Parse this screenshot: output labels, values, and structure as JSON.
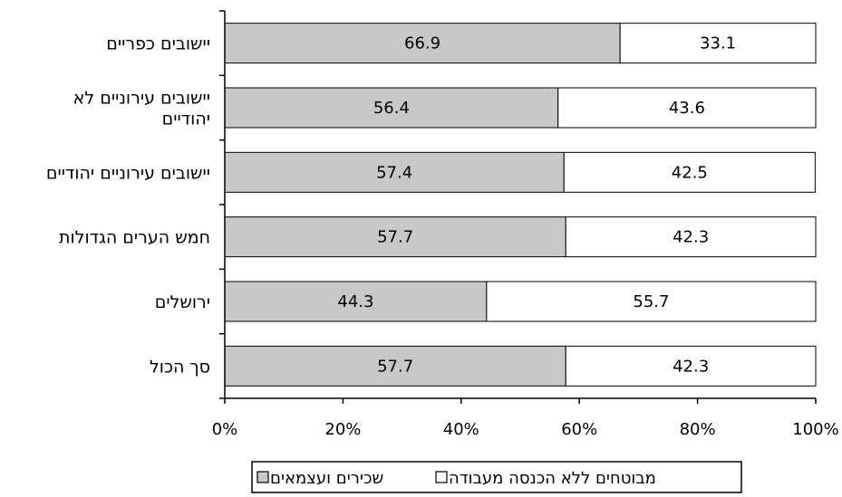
{
  "chart_data": {
    "type": "bar",
    "orientation": "horizontal",
    "stacked": true,
    "percent_stacked": true,
    "categories": [
      [
        "יישובים כפריים"
      ],
      [
        "יישובים עירוניים לא",
        "יהודיים"
      ],
      [
        "יישובים עירוניים יהודיים"
      ],
      [
        "חמש הערים הגדולות"
      ],
      [
        "ירושלים"
      ],
      [
        "סך הכול"
      ]
    ],
    "series": [
      {
        "name": "שכירים ועצמאים",
        "color": "#c8c8c8",
        "values": [
          66.9,
          56.4,
          57.4,
          57.7,
          44.3,
          57.7
        ],
        "labels": [
          "66.9",
          "56.4",
          "57.4",
          "57.7",
          "44.3",
          "57.7"
        ]
      },
      {
        "name": "מבוטחים ללא הכנסה מעבודה",
        "color": "#ffffff",
        "values": [
          33.1,
          43.6,
          42.5,
          42.3,
          55.7,
          42.3
        ],
        "labels": [
          "33.1",
          "43.6",
          "42.5",
          "42.3",
          "55.7",
          "42.3"
        ]
      }
    ],
    "x_ticks": [
      "0%",
      "20%",
      "40%",
      "60%",
      "80%",
      "100%"
    ],
    "xlim": [
      0,
      100
    ],
    "grid": false,
    "legend_position": "bottom"
  }
}
